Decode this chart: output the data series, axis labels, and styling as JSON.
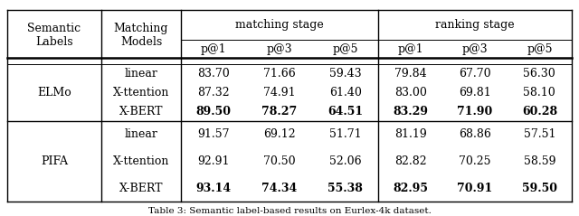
{
  "caption": "Table 3: Semantic label-based results on Eurlex-4k dataset.",
  "groups": [
    {
      "label": "ELMo",
      "rows": [
        {
          "model": "linear",
          "vals": [
            "83.70",
            "71.66",
            "59.43",
            "79.84",
            "67.70",
            "56.30"
          ],
          "bold": false
        },
        {
          "model": "X-ttention",
          "vals": [
            "87.32",
            "74.91",
            "61.40",
            "83.00",
            "69.81",
            "58.10"
          ],
          "bold": false
        },
        {
          "model": "X-BERT",
          "vals": [
            "89.50",
            "78.27",
            "64.51",
            "83.29",
            "71.90",
            "60.28"
          ],
          "bold": true
        }
      ]
    },
    {
      "label": "PIFA",
      "rows": [
        {
          "model": "linear",
          "vals": [
            "91.57",
            "69.12",
            "51.71",
            "81.19",
            "68.86",
            "57.51"
          ],
          "bold": false
        },
        {
          "model": "X-ttention",
          "vals": [
            "92.91",
            "70.50",
            "52.06",
            "82.82",
            "70.25",
            "58.59"
          ],
          "bold": false
        },
        {
          "model": "X-BERT",
          "vals": [
            "93.14",
            "74.34",
            "55.38",
            "82.95",
            "70.91",
            "59.50"
          ],
          "bold": true
        }
      ]
    }
  ],
  "header_sub": [
    "p@1",
    "p@3",
    "p@5",
    "p@1",
    "p@3",
    "p@5"
  ],
  "fs_header": 9.0,
  "fs_data": 9.0,
  "fs_caption": 7.5,
  "bg_color": "#ffffff"
}
